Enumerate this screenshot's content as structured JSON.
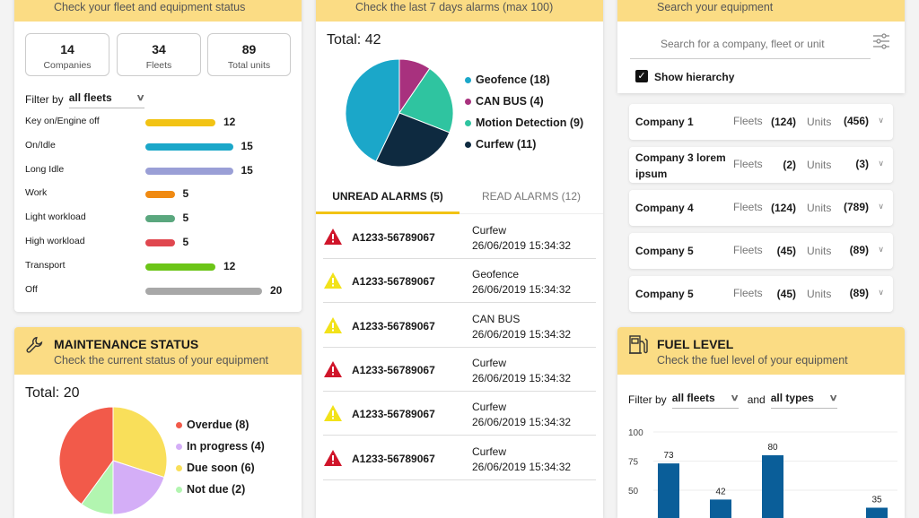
{
  "fleet_status": {
    "subtitle": "Check your fleet and equipment status",
    "stats": [
      {
        "value": "14",
        "label": "Companies"
      },
      {
        "value": "34",
        "label": "Fleets"
      },
      {
        "value": "89",
        "label": "Total units"
      }
    ],
    "filter_label": "Filter by",
    "filter_value": "all fleets",
    "rows": [
      {
        "label": "Key on/Engine off",
        "value": 12,
        "color": "#f2c314"
      },
      {
        "label": "On/Idle",
        "value": 15,
        "color": "#1ba7c9"
      },
      {
        "label": "Long Idle",
        "value": 15,
        "color": "#9a9fd6"
      },
      {
        "label": "Work",
        "value": 5,
        "color": "#f08a12"
      },
      {
        "label": "Light workload",
        "value": 5,
        "color": "#5aa77e"
      },
      {
        "label": "High workload",
        "value": 5,
        "color": "#e0474f"
      },
      {
        "label": "Transport",
        "value": 12,
        "color": "#6cc518"
      },
      {
        "label": "Off",
        "value": 20,
        "color": "#a8a8a8"
      }
    ]
  },
  "maintenance": {
    "title": "MAINTENANCE STATUS",
    "subtitle": "Check the current status of your equipment",
    "total": "Total: 20",
    "slices": [
      {
        "label": "Overdue (8)",
        "value": 8,
        "color": "#f25a4a"
      },
      {
        "label": "In progress (4)",
        "value": 4,
        "color": "#d4aef7"
      },
      {
        "label": "Due soon (6)",
        "value": 6,
        "color": "#f9df5a"
      },
      {
        "label": "Not due (2)",
        "value": 2,
        "color": "#b2f5b0"
      }
    ]
  },
  "alarms": {
    "subtitle": "Check the last 7 days alarms (max 100)",
    "total": "Total: 42",
    "slices": [
      {
        "label": "Geofence (18)",
        "value": 18,
        "color": "#1ba7c9"
      },
      {
        "label": "CAN BUS (4)",
        "value": 4,
        "color": "#a8317e"
      },
      {
        "label": "Motion Detection (9)",
        "value": 9,
        "color": "#2fc4a0"
      },
      {
        "label": "Curfew (11)",
        "value": 11,
        "color": "#0e2a40"
      }
    ],
    "tabs": [
      {
        "label": "UNREAD ALARMS (5)",
        "active": true
      },
      {
        "label": "READ ALARMS (12)",
        "active": false
      }
    ],
    "items": [
      {
        "id": "A1233-56789067",
        "type": "Curfew",
        "time": "26/06/2019 15:34:32",
        "severity": "high"
      },
      {
        "id": "A1233-56789067",
        "type": "Geofence",
        "time": "26/06/2019 15:34:32",
        "severity": "medium"
      },
      {
        "id": "A1233-56789067",
        "type": "CAN BUS",
        "time": "26/06/2019 15:34:32",
        "severity": "medium"
      },
      {
        "id": "A1233-56789067",
        "type": "Curfew",
        "time": "26/06/2019 15:34:32",
        "severity": "high"
      },
      {
        "id": "A1233-56789067",
        "type": "Curfew",
        "time": "26/06/2019 15:34:32",
        "severity": "medium"
      },
      {
        "id": "A1233-56789067",
        "type": "Curfew",
        "time": "26/06/2019 15:34:32",
        "severity": "high"
      }
    ]
  },
  "search": {
    "subtitle": "Search your equipment",
    "placeholder": "Search for a company, fleet or unit",
    "show_hierarchy": "Show hierarchy",
    "show_hierarchy_checked": true,
    "fleets_label": "Fleets",
    "units_label": "Units",
    "companies": [
      {
        "name": "Company 1",
        "fleets": "(124)",
        "units": "(456)"
      },
      {
        "name": "Company 3 lorem ipsum",
        "fleets": "(2)",
        "units": "(3)"
      },
      {
        "name": "Company 4",
        "fleets": "(124)",
        "units": "(789)"
      },
      {
        "name": "Company 5",
        "fleets": "(45)",
        "units": "(89)"
      },
      {
        "name": "Company 5",
        "fleets": "(45)",
        "units": "(89)"
      }
    ]
  },
  "fuel": {
    "title": "FUEL LEVEL",
    "subtitle": "Check the fuel level of your equipment",
    "filter_label": "Filter by",
    "filter1": "all fleets",
    "and_label": "and",
    "filter2": "all types"
  },
  "chart_data": {
    "type": "bar",
    "values": [
      73,
      42,
      80,
      null,
      35
    ],
    "yticks": [
      "100",
      "75",
      "50"
    ],
    "ylim": [
      0,
      100
    ],
    "color": "#0a5e99",
    "grid": true
  }
}
